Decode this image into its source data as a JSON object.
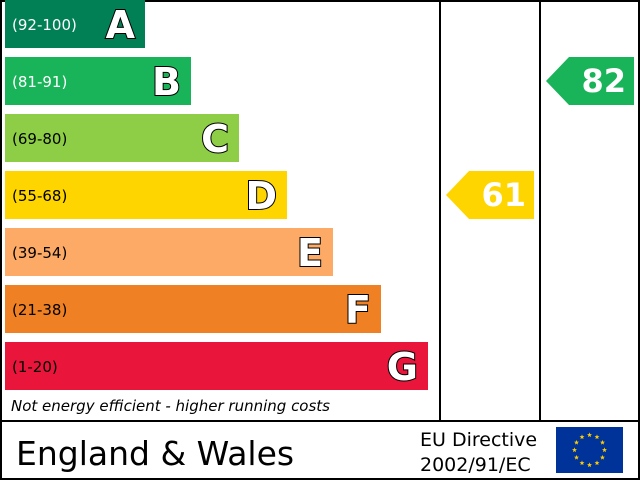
{
  "chart_data": {
    "type": "bar",
    "bands": [
      {
        "letter": "A",
        "range": "(92-100)",
        "color": "#008054",
        "range_color": "#ffffff"
      },
      {
        "letter": "B",
        "range": "(81-91)",
        "color": "#19b459",
        "range_color": "#ffffff"
      },
      {
        "letter": "C",
        "range": "(69-80)",
        "color": "#8dce46",
        "range_color": "#000000"
      },
      {
        "letter": "D",
        "range": "(55-68)",
        "color": "#ffd500",
        "range_color": "#000000"
      },
      {
        "letter": "E",
        "range": "(39-54)",
        "color": "#fcaa65",
        "range_color": "#000000"
      },
      {
        "letter": "F",
        "range": "(21-38)",
        "color": "#ef8023",
        "range_color": "#000000"
      },
      {
        "letter": "G",
        "range": "(1-20)",
        "color": "#e9153b",
        "range_color": "#000000"
      }
    ],
    "current": {
      "value": 61,
      "band": "D",
      "color": "#ffd500"
    },
    "potential": {
      "value": 82,
      "band": "B",
      "color": "#19b459"
    },
    "footer_note": "Not energy efficient - higher running costs",
    "region": "England & Wales",
    "directive_line1": "EU Directive",
    "directive_line2": "2002/91/EC",
    "flag": {
      "background": "#003399",
      "stars": "#ffcc00"
    }
  }
}
